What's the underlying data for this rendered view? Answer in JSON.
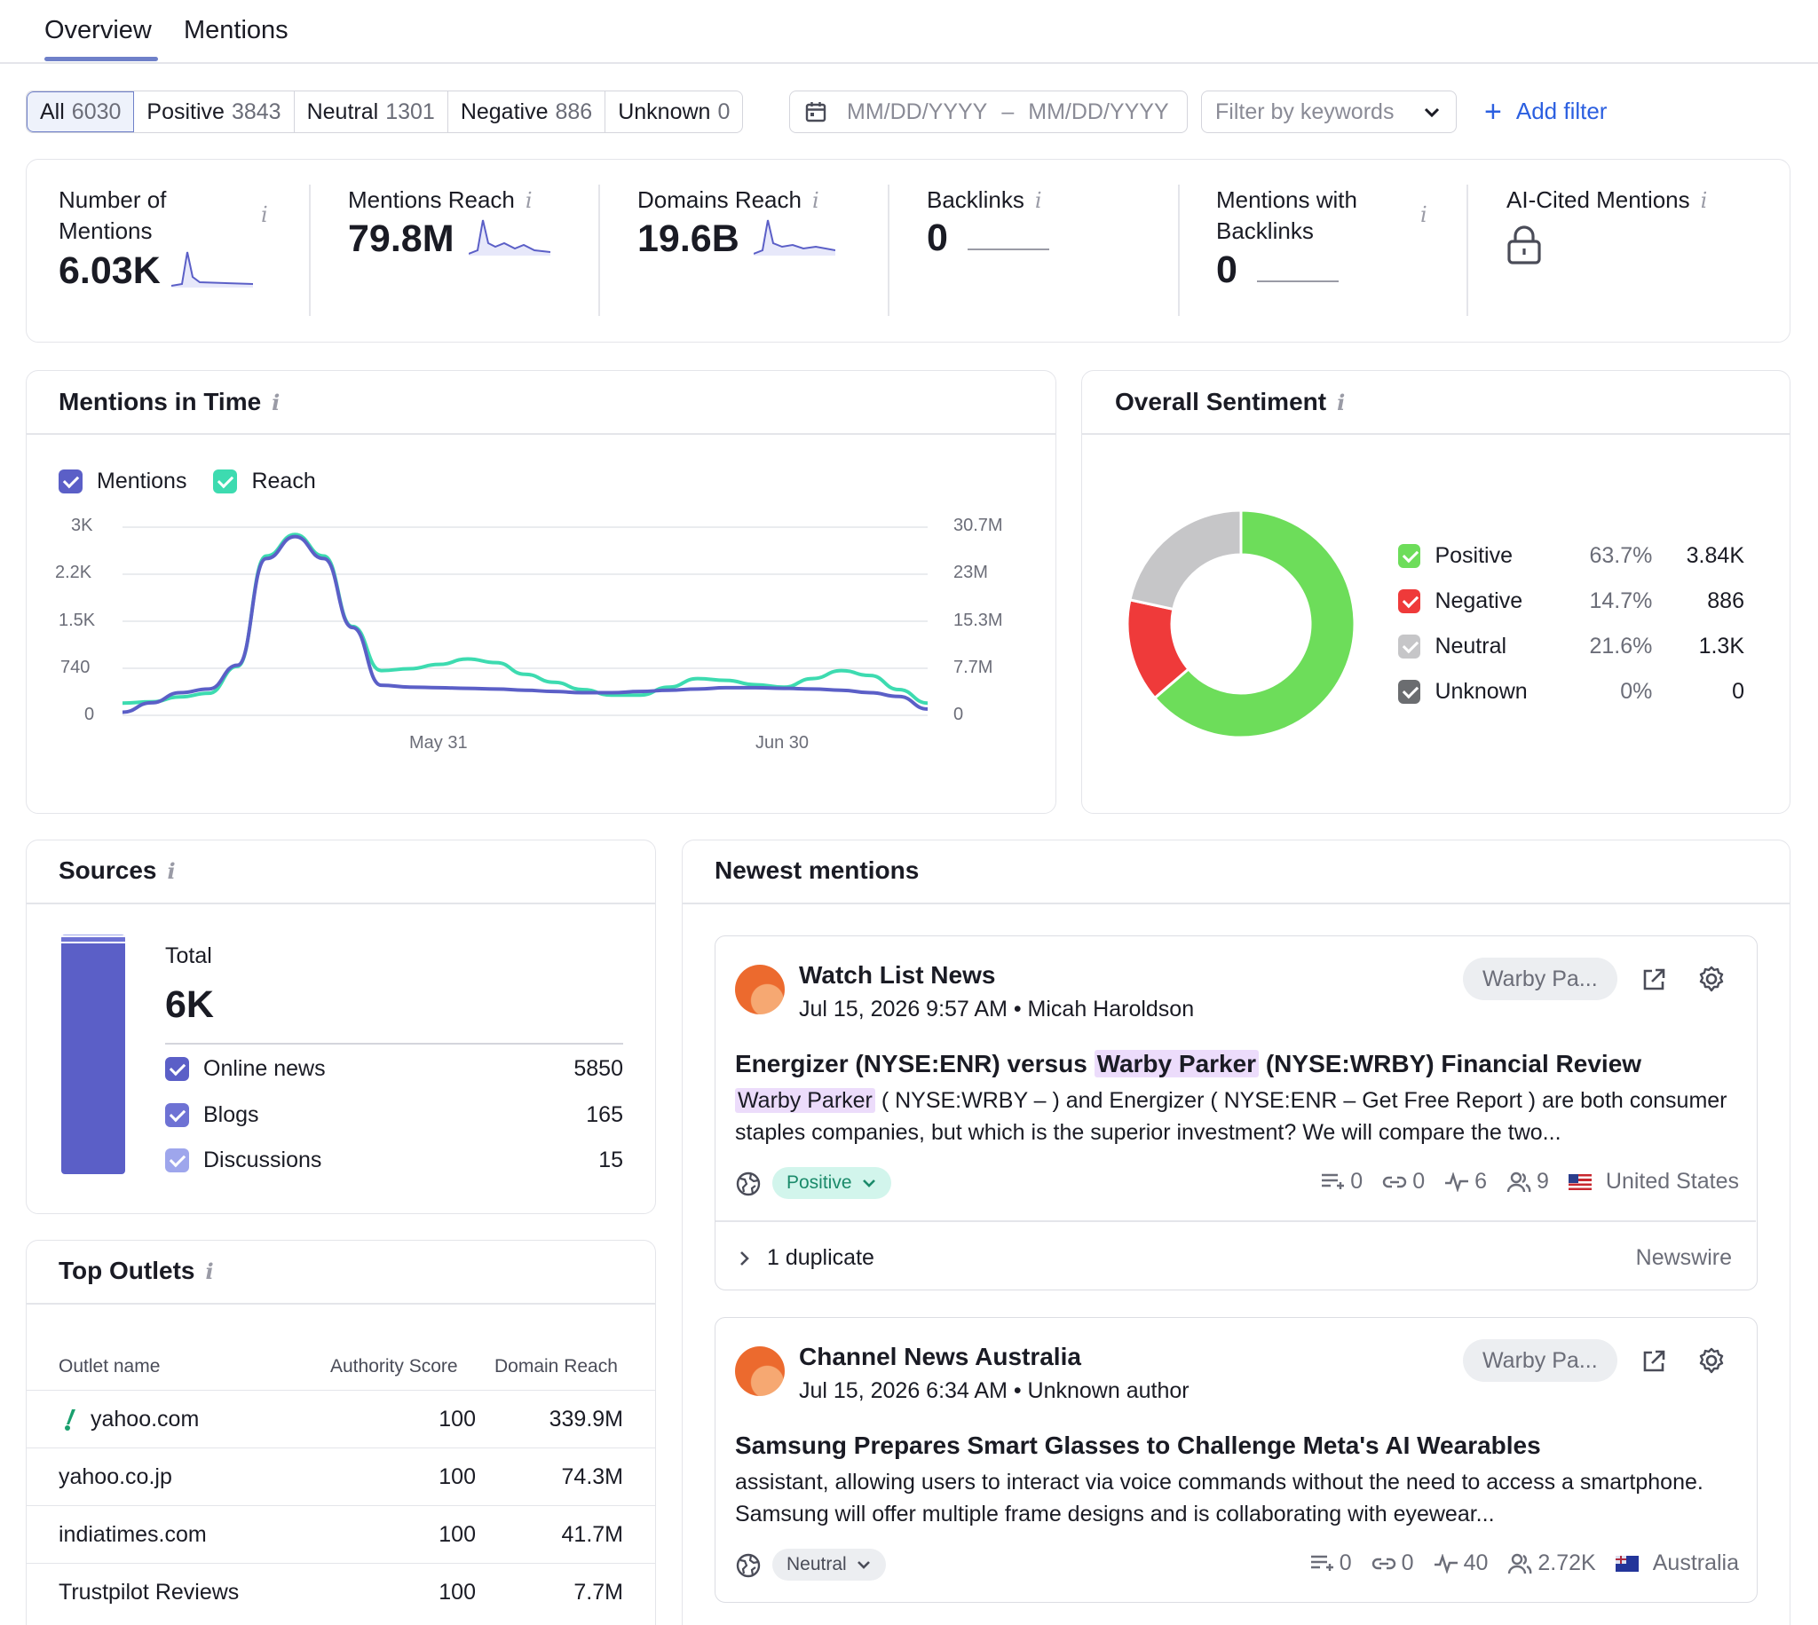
{
  "tabs": [
    {
      "label": "Overview",
      "active": true
    },
    {
      "label": "Mentions",
      "active": false
    }
  ],
  "filters": {
    "segments": [
      {
        "label": "All",
        "count": "6030",
        "active": true
      },
      {
        "label": "Positive",
        "count": "3843"
      },
      {
        "label": "Neutral",
        "count": "1301"
      },
      {
        "label": "Negative",
        "count": "886"
      },
      {
        "label": "Unknown",
        "count": "0"
      }
    ],
    "date_from_placeholder": "MM/DD/YYYY",
    "date_separator": "–",
    "date_to_placeholder": "MM/DD/YYYY",
    "keywords_placeholder": "Filter by keywords",
    "add_filter_label": "Add filter"
  },
  "metrics": [
    {
      "label": "Number of Mentions",
      "value": "6.03K"
    },
    {
      "label": "Mentions Reach",
      "value": "79.8M"
    },
    {
      "label": "Domains Reach",
      "value": "19.6B"
    },
    {
      "label": "Backlinks",
      "value": "0"
    },
    {
      "label": "Mentions with Backlinks",
      "value": "0"
    },
    {
      "label": "AI-Cited Mentions",
      "value": ""
    }
  ],
  "mentions_in_time": {
    "title": "Mentions in Time",
    "legend": [
      {
        "name": "Mentions",
        "color": "#5b5fc7"
      },
      {
        "name": "Reach",
        "color": "#3ddbb0"
      }
    ]
  },
  "chart_data": {
    "type": "line",
    "title": "Mentions in Time",
    "x_tick_labels": [
      "May 31",
      "Jun 30"
    ],
    "y_left_ticks": [
      "3K",
      "2.2K",
      "1.5K",
      "740",
      "0"
    ],
    "y_right_ticks": [
      "30.7M",
      "23M",
      "15.3M",
      "7.7M",
      "0"
    ],
    "ylim_left": [
      0,
      3000
    ],
    "ylim_right": [
      0,
      30700000
    ],
    "grid": true,
    "legend_position": "top-left",
    "series": [
      {
        "name": "Mentions",
        "axis": "left",
        "color": "#5b5fc7",
        "values": [
          50,
          200,
          360,
          420,
          800,
          2500,
          2850,
          2500,
          1400,
          480,
          450,
          440,
          430,
          420,
          400,
          380,
          360,
          360,
          380,
          400,
          420,
          440,
          440,
          430,
          420,
          400,
          360,
          300,
          100
        ]
      },
      {
        "name": "Reach",
        "axis": "right",
        "color": "#3ddbb0",
        "values": [
          2000000,
          2200000,
          3000000,
          3600000,
          8000000,
          26000000,
          29500000,
          26000000,
          14500000,
          7300000,
          7600000,
          8300000,
          9200000,
          8600000,
          6700000,
          5400000,
          4200000,
          3300000,
          3300000,
          4600000,
          6000000,
          5700000,
          5000000,
          4600000,
          6000000,
          7300000,
          6500000,
          4200000,
          2000000
        ]
      }
    ]
  },
  "overall_sentiment": {
    "title": "Overall Sentiment",
    "chart_data": {
      "type": "pie",
      "rows": [
        {
          "name": "Positive",
          "pct": "63.7%",
          "count": "3.84K",
          "value": 63.7,
          "color": "#6ddd5a"
        },
        {
          "name": "Negative",
          "pct": "14.7%",
          "count": "886",
          "value": 14.7,
          "color": "#ef3a3a"
        },
        {
          "name": "Neutral",
          "pct": "21.6%",
          "count": "1.3K",
          "value": 21.6,
          "color": "#c6c6c8"
        },
        {
          "name": "Unknown",
          "pct": "0%",
          "count": "0",
          "value": 0,
          "color": "#6b6d70"
        }
      ]
    }
  },
  "sources": {
    "title": "Sources",
    "total_label": "Total",
    "total_value": "6K",
    "items": [
      {
        "name": "Online news",
        "count": "5850",
        "color": "#5b5fc7"
      },
      {
        "name": "Blogs",
        "count": "165",
        "color": "#6e72d4"
      },
      {
        "name": "Discussions",
        "count": "15",
        "color": "#9ea6ec"
      }
    ],
    "bar_fractions": [
      0.975,
      0.0275,
      0.0025
    ]
  },
  "top_outlets": {
    "title": "Top Outlets",
    "columns": [
      "Outlet name",
      "Authority Score",
      "Domain Reach"
    ],
    "rows": [
      {
        "name": "yahoo.com",
        "score": "100",
        "reach": "339.9M"
      },
      {
        "name": "yahoo.co.jp",
        "score": "100",
        "reach": "74.3M"
      },
      {
        "name": "indiatimes.com",
        "score": "100",
        "reach": "41.7M"
      },
      {
        "name": "Trustpilot Reviews",
        "score": "100",
        "reach": "7.7M"
      }
    ]
  },
  "newest_mentions": {
    "title": "Newest mentions",
    "items": [
      {
        "source": "Watch List News",
        "meta": "Jul 15, 2026 9:57 AM • Micah Haroldson",
        "tag": "Warby Pa...",
        "title_pre": "Energizer (NYSE:ENR) versus ",
        "title_hl": "Warby Parker",
        "title_post": " (NYSE:WRBY) Financial Review",
        "body_hl": "Warby Parker",
        "body_post": " ( NYSE:WRBY – ) and Energizer ( NYSE:ENR – Get Free Report ) are both consumer staples companies, but which is the superior investment? We will compare the two...",
        "sentiment": "Positive",
        "stats": [
          "0",
          "0",
          "6",
          "9"
        ],
        "country": "United States",
        "duplicate_label": "1 duplicate",
        "duplicate_source": "Newswire"
      },
      {
        "source": "Channel News Australia",
        "meta": "Jul 15, 2026 6:34 AM • Unknown author",
        "tag": "Warby Pa...",
        "title": "Samsung Prepares Smart Glasses to Challenge Meta's AI Wearables",
        "body": "assistant, allowing users to interact via voice commands without the need to access a smartphone. Samsung will offer multiple frame designs and is collaborating with eyewear...",
        "sentiment": "Neutral",
        "stats": [
          "0",
          "0",
          "40",
          "2.72K"
        ],
        "country": "Australia"
      }
    ]
  },
  "colors": {
    "accent": "#2b5fe0",
    "tab_underline": "#6f80c9",
    "mentions": "#5b5fc7",
    "reach": "#3ddbb0"
  }
}
